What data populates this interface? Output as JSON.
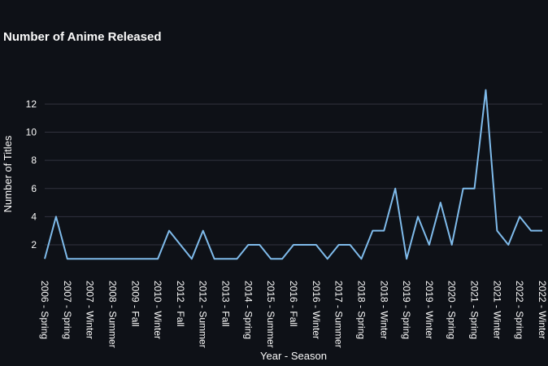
{
  "chart_data": {
    "type": "line",
    "title": "Number of Anime Released",
    "x_label": "Year - Season",
    "y_label": "Number of Titles",
    "categories": [
      "2006 - Spring",
      null,
      "2007 - Spring",
      null,
      "2007 - Winter",
      null,
      "2008 - Summer",
      null,
      "2009 - Fall",
      null,
      "2010 - Winter",
      null,
      "2012 - Fall",
      null,
      "2012 - Summer",
      null,
      "2013 - Fall",
      null,
      "2014 - Spring",
      null,
      "2015 - Summer",
      null,
      "2016 - Fall",
      null,
      "2016 - Winter",
      null,
      "2017 - Summer",
      null,
      "2018 - Spring",
      null,
      "2018 - Winter",
      null,
      "2019 - Spring",
      null,
      "2019 - Winter",
      null,
      "2020 - Spring",
      null,
      "2021 - Spring",
      null,
      "2021 - Winter",
      null,
      "2022 - Spring",
      null,
      "2022 - Winter"
    ],
    "values": [
      1,
      4,
      1,
      1,
      1,
      1,
      1,
      1,
      1,
      1,
      1,
      3,
      2,
      1,
      3,
      1,
      1,
      1,
      2,
      2,
      1,
      1,
      2,
      2,
      2,
      1,
      2,
      2,
      1,
      3,
      3,
      6,
      1,
      4,
      2,
      5,
      2,
      6,
      6,
      13,
      3,
      2,
      4,
      3,
      3
    ],
    "color": "#7fbbeb",
    "ylim": [
      0.9,
      13.5
    ],
    "yticks": [
      2,
      4,
      6,
      8,
      10,
      12
    ],
    "grid": true
  }
}
